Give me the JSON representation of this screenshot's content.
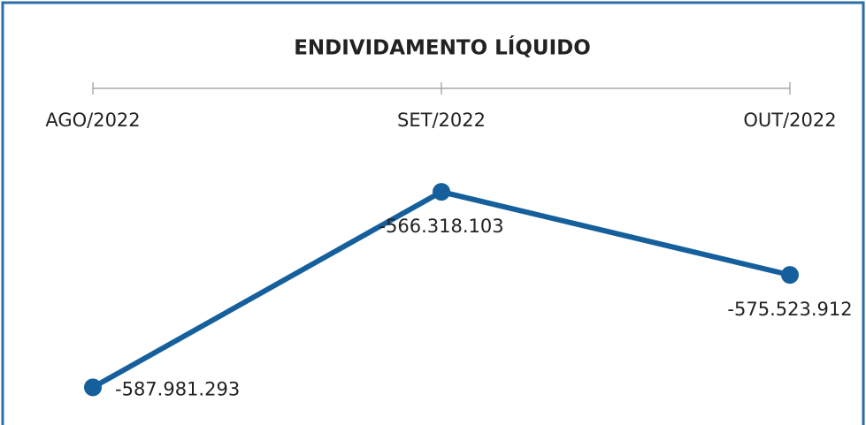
{
  "chart_data": {
    "type": "line",
    "title": "ENDIVIDAMENTO LÍQUIDO",
    "categories": [
      "AGO/2022",
      "SET/2022",
      "OUT/2022"
    ],
    "series": [
      {
        "name": "Endividamento Líquido",
        "color": "#15609c",
        "values": [
          -587981293,
          -566318103,
          -575523912
        ],
        "value_labels": [
          "-587.981.293",
          "-566.318.103",
          "-575.523.912"
        ]
      }
    ],
    "ylim": [
      -590000000,
      -562000000
    ]
  }
}
